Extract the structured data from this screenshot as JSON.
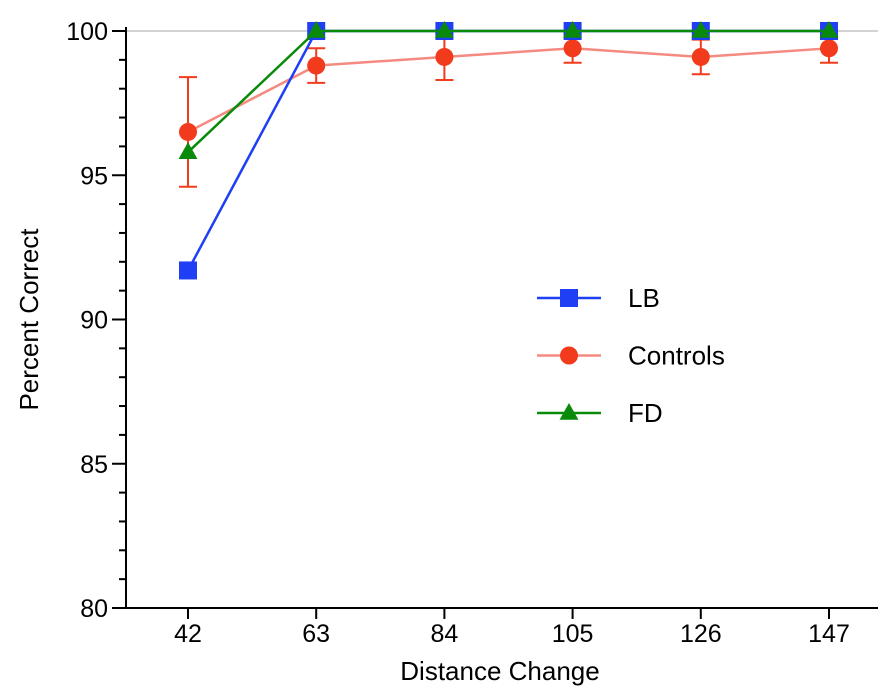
{
  "chart_data": {
    "type": "line",
    "title": "",
    "xlabel": "Distance Change",
    "ylabel": "Percent Correct",
    "categories": [
      "42",
      "63",
      "84",
      "105",
      "126",
      "147"
    ],
    "ylim": [
      80,
      100
    ],
    "yticks": [
      80,
      85,
      90,
      95,
      100
    ],
    "reference_line": 100,
    "legend_position": "right",
    "series": [
      {
        "name": "LB",
        "color": "#1f3ff5",
        "marker": "square",
        "values": [
          91.7,
          100,
          100,
          100,
          100,
          100
        ]
      },
      {
        "name": "Controls",
        "color": "#f23a1c",
        "line_color": "#f58a80",
        "marker": "circle",
        "values": [
          96.5,
          98.8,
          99.1,
          99.4,
          99.1,
          99.4
        ],
        "error": [
          1.9,
          0.6,
          0.8,
          0.5,
          0.6,
          0.5
        ]
      },
      {
        "name": "FD",
        "color": "#0a8a0a",
        "marker": "triangle",
        "values": [
          95.8,
          100,
          100,
          100,
          100,
          100
        ]
      }
    ]
  }
}
